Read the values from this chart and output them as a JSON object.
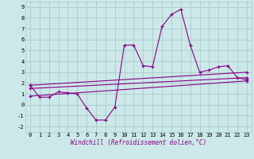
{
  "xlabel": "Windchill (Refroidissement éolien,°C)",
  "bg_color": "#cce8e8",
  "grid_color": "#aacccc",
  "line_color": "#880088",
  "xlim": [
    -0.5,
    23.5
  ],
  "ylim": [
    -2.5,
    9.5
  ],
  "xticks": [
    0,
    1,
    2,
    3,
    4,
    5,
    6,
    7,
    8,
    9,
    10,
    11,
    12,
    13,
    14,
    15,
    16,
    17,
    18,
    19,
    20,
    21,
    22,
    23
  ],
  "yticks": [
    -2,
    -1,
    0,
    1,
    2,
    3,
    4,
    5,
    6,
    7,
    8,
    9
  ],
  "series1_x": [
    0,
    1,
    2,
    3,
    4,
    5,
    6,
    7,
    8,
    9,
    10,
    11,
    12,
    13,
    14,
    15,
    16,
    17,
    18,
    19,
    20,
    21,
    22,
    23
  ],
  "series1_y": [
    1.8,
    0.7,
    0.7,
    1.2,
    1.1,
    1.0,
    -0.3,
    -1.4,
    -1.4,
    -0.2,
    5.5,
    5.5,
    3.6,
    3.5,
    7.2,
    8.3,
    8.8,
    5.5,
    3.0,
    3.2,
    3.5,
    3.6,
    2.5,
    2.3
  ],
  "series2_x": [
    0,
    23
  ],
  "series2_y": [
    1.8,
    3.0
  ],
  "series3_x": [
    0,
    23
  ],
  "series3_y": [
    1.5,
    2.5
  ],
  "series4_x": [
    0,
    23
  ],
  "series4_y": [
    0.8,
    2.2
  ],
  "marker": "+",
  "marker_size": 3.5,
  "linewidth": 0.8,
  "tick_fontsize": 5,
  "xlabel_fontsize": 5.5
}
